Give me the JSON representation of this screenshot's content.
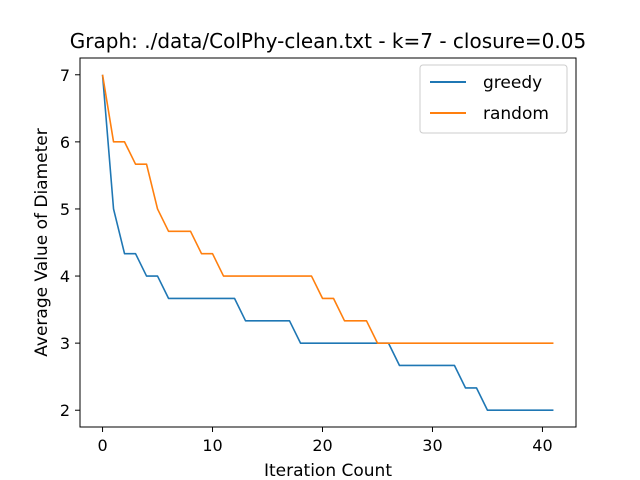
{
  "chart_data": {
    "type": "line",
    "title": "Graph: ./data/ColPhy-clean.txt - k=7 - closure=0.05",
    "xlabel": "Iteration Count",
    "ylabel": "Average Value of Diameter",
    "xlim": [
      -2.05,
      43.05
    ],
    "ylim": [
      1.75,
      7.25
    ],
    "xticks": [
      0,
      10,
      20,
      30,
      40
    ],
    "yticks": [
      2,
      3,
      4,
      5,
      6,
      7
    ],
    "grid": false,
    "legend_position": "top-right",
    "x": [
      0,
      1,
      2,
      3,
      4,
      5,
      6,
      7,
      8,
      9,
      10,
      11,
      12,
      13,
      14,
      15,
      16,
      17,
      18,
      19,
      20,
      21,
      22,
      23,
      24,
      25,
      26,
      27,
      28,
      29,
      30,
      31,
      32,
      33,
      34,
      35,
      36,
      37,
      38,
      39,
      40,
      41
    ],
    "series": [
      {
        "name": "greedy",
        "color": "#1f77b4",
        "values": [
          7,
          5,
          4.333,
          4.333,
          4,
          4,
          3.667,
          3.667,
          3.667,
          3.667,
          3.667,
          3.667,
          3.667,
          3.333,
          3.333,
          3.333,
          3.333,
          3.333,
          3,
          3,
          3,
          3,
          3,
          3,
          3,
          3,
          3,
          2.667,
          2.667,
          2.667,
          2.667,
          2.667,
          2.667,
          2.333,
          2.333,
          2,
          2,
          2,
          2,
          2,
          2,
          2
        ]
      },
      {
        "name": "random",
        "color": "#ff7f0e",
        "values": [
          7,
          6,
          6,
          5.667,
          5.667,
          5,
          4.667,
          4.667,
          4.667,
          4.333,
          4.333,
          4,
          4,
          4,
          4,
          4,
          4,
          4,
          4,
          4,
          3.667,
          3.667,
          3.333,
          3.333,
          3.333,
          3,
          3,
          3,
          3,
          3,
          3,
          3,
          3,
          3,
          3,
          3,
          3,
          3,
          3,
          3,
          3,
          3
        ]
      }
    ]
  }
}
